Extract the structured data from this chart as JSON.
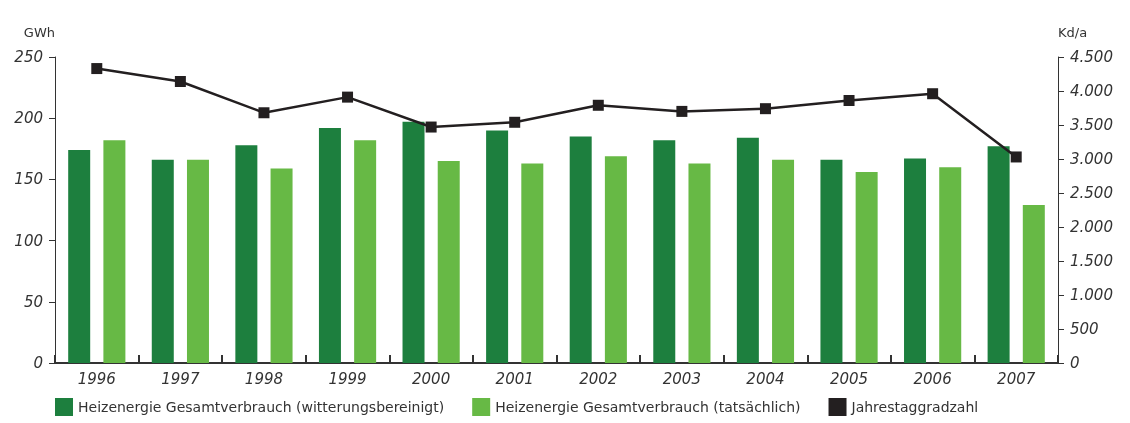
{
  "chart_data": {
    "type": "bar",
    "ylabel": "GWh",
    "y2label": "Kd/a",
    "categories": [
      "1996",
      "1997",
      "1998",
      "1999",
      "2000",
      "2001",
      "2002",
      "2003",
      "2004",
      "2005",
      "2006",
      "2007"
    ],
    "series": [
      {
        "name": "Heizenergie Gesamtverbrauch (witterungsbereinigt)",
        "color": "#1d7f3e",
        "values": [
          174,
          166,
          178,
          192,
          197,
          190,
          185,
          182,
          184,
          166,
          167,
          177
        ]
      },
      {
        "name": "Heizenergie Gesamtverbrauch (tatsächlich)",
        "color": "#67b945",
        "values": [
          182,
          166,
          159,
          182,
          165,
          163,
          169,
          163,
          166,
          156,
          160,
          129
        ]
      },
      {
        "name": "Jahrestaggradzahl",
        "type": "line",
        "axis": "y2",
        "color": "#231f20",
        "marker": "square",
        "values": [
          4330,
          4140,
          3680,
          3910,
          3470,
          3540,
          3790,
          3700,
          3740,
          3860,
          3960,
          3030
        ]
      }
    ],
    "ylim": [
      0,
      250
    ],
    "yticks": [
      0,
      50,
      100,
      150,
      200,
      250
    ],
    "y2lim": [
      0,
      4500
    ],
    "y2ticks": [
      0,
      {
        "value": 500,
        "label": "500"
      },
      {
        "value": 1000,
        "label": "1.000"
      },
      {
        "value": 1500,
        "label": "1.500"
      },
      {
        "value": 2000,
        "label": "2.000"
      },
      {
        "value": 2500,
        "label": "2.500"
      },
      {
        "value": 3000,
        "label": "3.000"
      },
      {
        "value": 3500,
        "label": "3.500"
      },
      {
        "value": 4000,
        "label": "4.000"
      },
      {
        "value": 4500,
        "label": "4.500"
      }
    ],
    "grid": false,
    "legend": "bottom"
  }
}
